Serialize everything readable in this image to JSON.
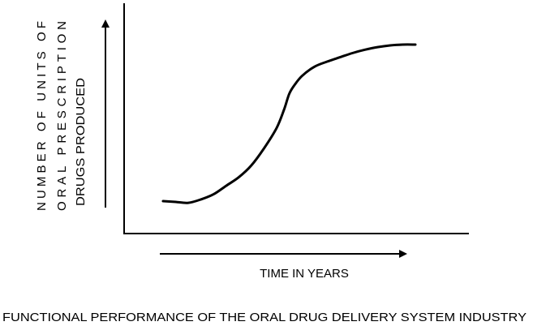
{
  "chart_data": {
    "type": "line",
    "title": "FUNCTIONAL PERFORMANCE OF THE ORAL DRUG DELIVERY SYSTEM INDUSTRY",
    "xlabel": "TIME IN YEARS",
    "ylabel_lines": [
      "NUMBER OF UNITS OF",
      "ORAL PRESCRIPTION",
      "DRUGS PRODUCED"
    ],
    "grid": false,
    "legend": "none",
    "axis_ticks": "none",
    "x_range": [
      0,
      1
    ],
    "y_range": [
      0,
      1
    ],
    "series": [
      {
        "color": "#000000",
        "x": [
          0.0,
          0.05,
          0.1,
          0.15,
          0.2,
          0.25,
          0.3,
          0.35,
          0.4,
          0.45,
          0.48,
          0.5,
          0.52,
          0.55,
          0.6,
          0.65,
          0.7,
          0.75,
          0.8,
          0.85,
          0.9,
          0.95,
          1.0
        ],
        "y": [
          0.12,
          0.115,
          0.11,
          0.13,
          0.16,
          0.21,
          0.26,
          0.33,
          0.43,
          0.55,
          0.66,
          0.75,
          0.8,
          0.855,
          0.91,
          0.94,
          0.965,
          0.99,
          1.01,
          1.025,
          1.035,
          1.04,
          1.04
        ]
      }
    ]
  }
}
